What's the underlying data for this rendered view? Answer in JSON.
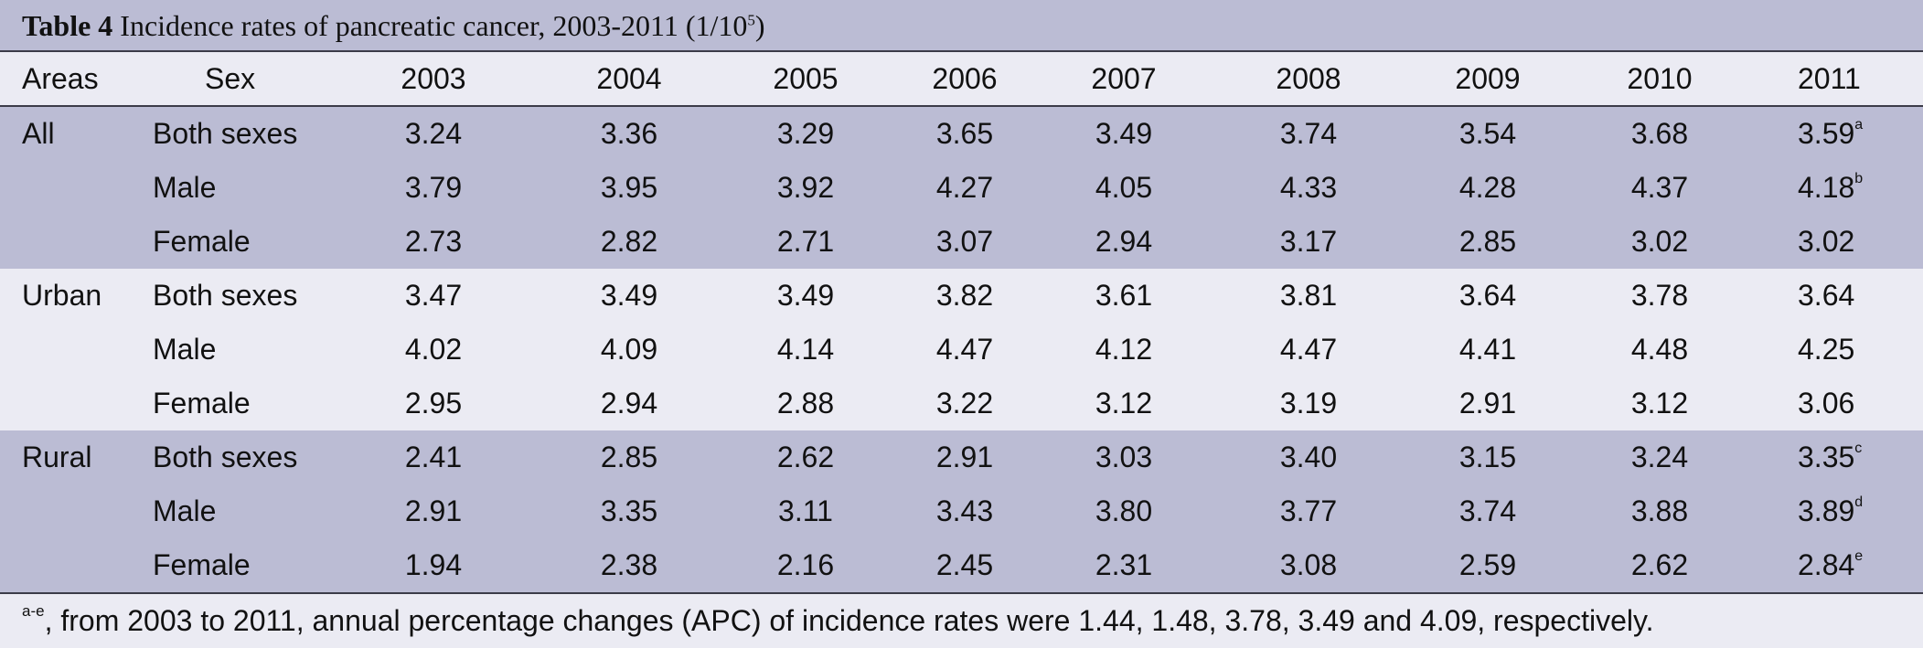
{
  "title": {
    "bold": "Table 4",
    "text": " Incidence rates of pancreatic cancer, 2003-2011 (1/10",
    "sup": "5",
    "close": ")"
  },
  "headers": [
    "Areas",
    "Sex",
    "2003",
    "2004",
    "2005",
    "2006",
    "2007",
    "2008",
    "2009",
    "2010",
    "2011"
  ],
  "groups": [
    {
      "area": "All",
      "rows": [
        {
          "sex": "Both sexes",
          "values": [
            "3.24",
            "3.36",
            "3.29",
            "3.65",
            "3.49",
            "3.74",
            "3.54",
            "3.68",
            "3.59"
          ],
          "last_sup": "a"
        },
        {
          "sex": "Male",
          "values": [
            "3.79",
            "3.95",
            "3.92",
            "4.27",
            "4.05",
            "4.33",
            "4.28",
            "4.37",
            "4.18"
          ],
          "last_sup": "b"
        },
        {
          "sex": "Female",
          "values": [
            "2.73",
            "2.82",
            "2.71",
            "3.07",
            "2.94",
            "3.17",
            "2.85",
            "3.02",
            "3.02"
          ],
          "last_sup": ""
        }
      ]
    },
    {
      "area": "Urban",
      "rows": [
        {
          "sex": "Both sexes",
          "values": [
            "3.47",
            "3.49",
            "3.49",
            "3.82",
            "3.61",
            "3.81",
            "3.64",
            "3.78",
            "3.64"
          ],
          "last_sup": ""
        },
        {
          "sex": "Male",
          "values": [
            "4.02",
            "4.09",
            "4.14",
            "4.47",
            "4.12",
            "4.47",
            "4.41",
            "4.48",
            "4.25"
          ],
          "last_sup": ""
        },
        {
          "sex": "Female",
          "values": [
            "2.95",
            "2.94",
            "2.88",
            "3.22",
            "3.12",
            "3.19",
            "2.91",
            "3.12",
            "3.06"
          ],
          "last_sup": ""
        }
      ]
    },
    {
      "area": "Rural",
      "rows": [
        {
          "sex": "Both sexes",
          "values": [
            "2.41",
            "2.85",
            "2.62",
            "2.91",
            "3.03",
            "3.40",
            "3.15",
            "3.24",
            "3.35"
          ],
          "last_sup": "c"
        },
        {
          "sex": "Male",
          "values": [
            "2.91",
            "3.35",
            "3.11",
            "3.43",
            "3.80",
            "3.77",
            "3.74",
            "3.88",
            "3.89"
          ],
          "last_sup": "d"
        },
        {
          "sex": "Female",
          "values": [
            "1.94",
            "2.38",
            "2.16",
            "2.45",
            "2.31",
            "3.08",
            "2.59",
            "2.62",
            "2.84"
          ],
          "last_sup": "e"
        }
      ]
    }
  ],
  "footnote": {
    "sup": "a-e",
    "text": ", from 2003 to 2011, annual percentage changes (APC) of incidence rates were 1.44, 1.48, 3.78, 3.49 and 4.09, respectively."
  },
  "colors": {
    "band_dark": "#bbbcd4",
    "band_light": "#ebebf3",
    "rule": "#3b3b48"
  }
}
